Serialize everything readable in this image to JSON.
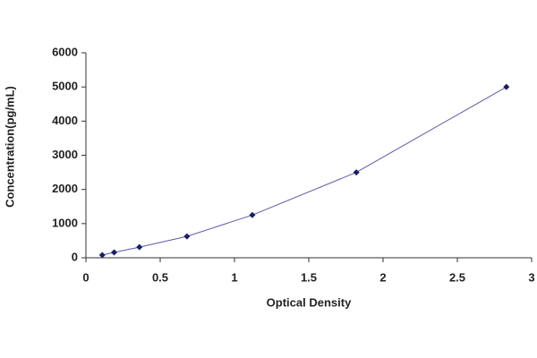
{
  "chart_data": {
    "type": "line",
    "x_label": "Optical Density",
    "y_label": "Concentration(pg/mL)",
    "series": [
      {
        "color": "#5a5aa8",
        "marker_color": "#1c1c6a",
        "x": [
          0.11,
          0.19,
          0.36,
          0.68,
          1.12,
          1.82,
          2.83
        ],
        "values": [
          78,
          156,
          312,
          625,
          1250,
          2500,
          5000
        ]
      }
    ],
    "xlim": [
      0,
      3
    ],
    "xticks": [
      0,
      0.5,
      1,
      1.5,
      2,
      2.5,
      3
    ],
    "ylim": [
      0,
      6000
    ],
    "yticks": [
      0,
      1000,
      2000,
      3000,
      4000,
      5000,
      6000
    ],
    "grid": false
  }
}
